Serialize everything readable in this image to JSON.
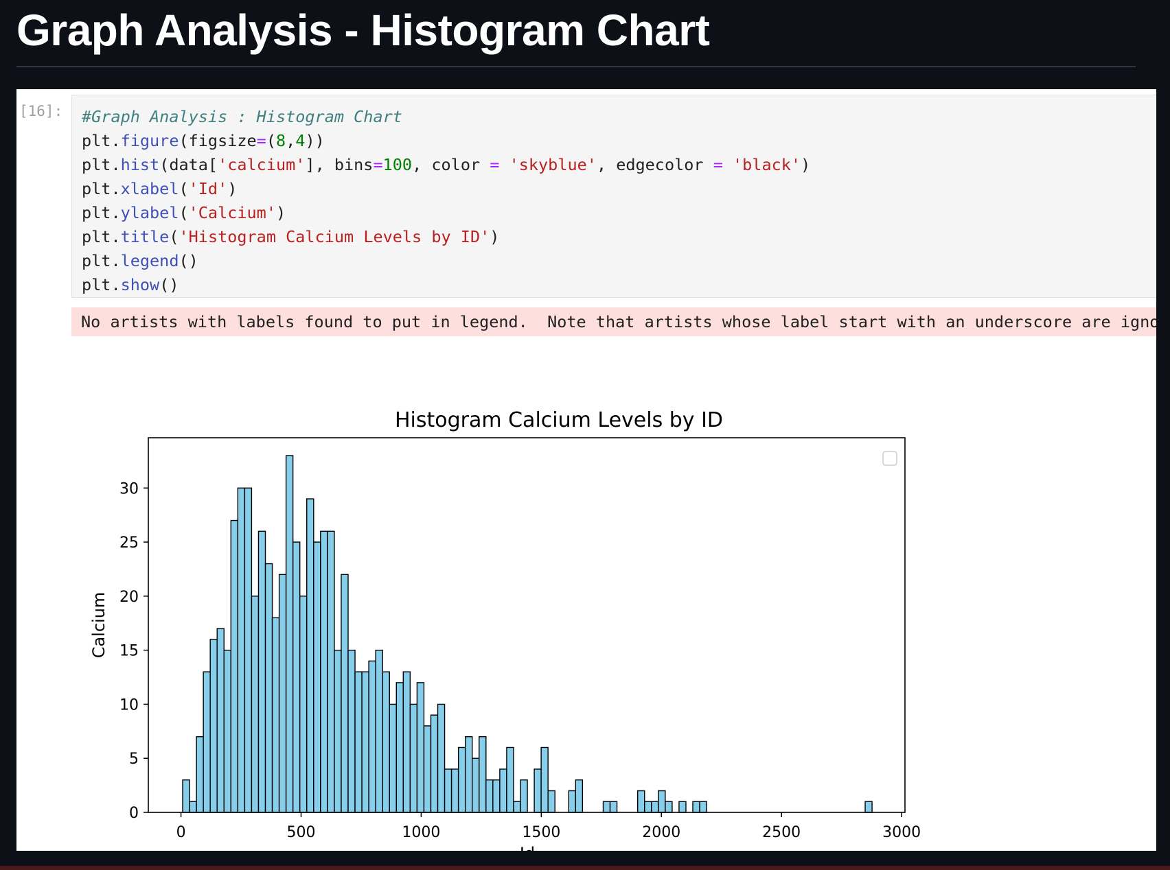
{
  "page": {
    "title": "Graph Analysis - Histogram Chart"
  },
  "cell": {
    "prompt": "[16]:",
    "stderr": "No artists with labels found to put in legend.  Note that artists whose label start with an underscore are ignored"
  },
  "chart_data": {
    "type": "bar",
    "title": "Histogram Calcium Levels by ID",
    "xlabel": "Id",
    "ylabel": "Calcium",
    "xlim": [
      -136,
      3014
    ],
    "ylim": [
      0,
      34.65
    ],
    "xticks": [
      0,
      500,
      1000,
      1500,
      2000,
      2500,
      3000
    ],
    "yticks": [
      0,
      5,
      10,
      15,
      20,
      25,
      30
    ],
    "legend": "empty, top-right",
    "grid": false,
    "colors": {
      "bar_fill": "#87ceeb",
      "bar_edge": "#000000"
    },
    "bin_start": 7,
    "bin_width": 28.7,
    "counts": [
      3,
      1,
      7,
      13,
      16,
      17,
      15,
      27,
      30,
      30,
      20,
      26,
      23,
      18,
      22,
      33,
      25,
      20,
      29,
      25,
      26,
      26,
      15,
      22,
      15,
      13,
      13,
      14,
      15,
      13,
      10,
      12,
      13,
      10,
      12,
      8,
      9,
      10,
      4,
      4,
      6,
      7,
      5,
      7,
      3,
      3,
      4,
      6,
      1,
      3,
      0,
      4,
      6,
      2,
      0,
      0,
      2,
      3,
      0,
      0,
      0,
      1,
      1,
      0,
      0,
      0,
      2,
      1,
      1,
      2,
      1,
      0,
      1,
      0,
      1,
      1,
      0,
      0,
      0,
      0,
      0,
      0,
      0,
      0,
      0,
      0,
      0,
      0,
      0,
      0,
      0,
      0,
      0,
      0,
      0,
      0,
      0,
      0,
      0,
      1
    ]
  }
}
